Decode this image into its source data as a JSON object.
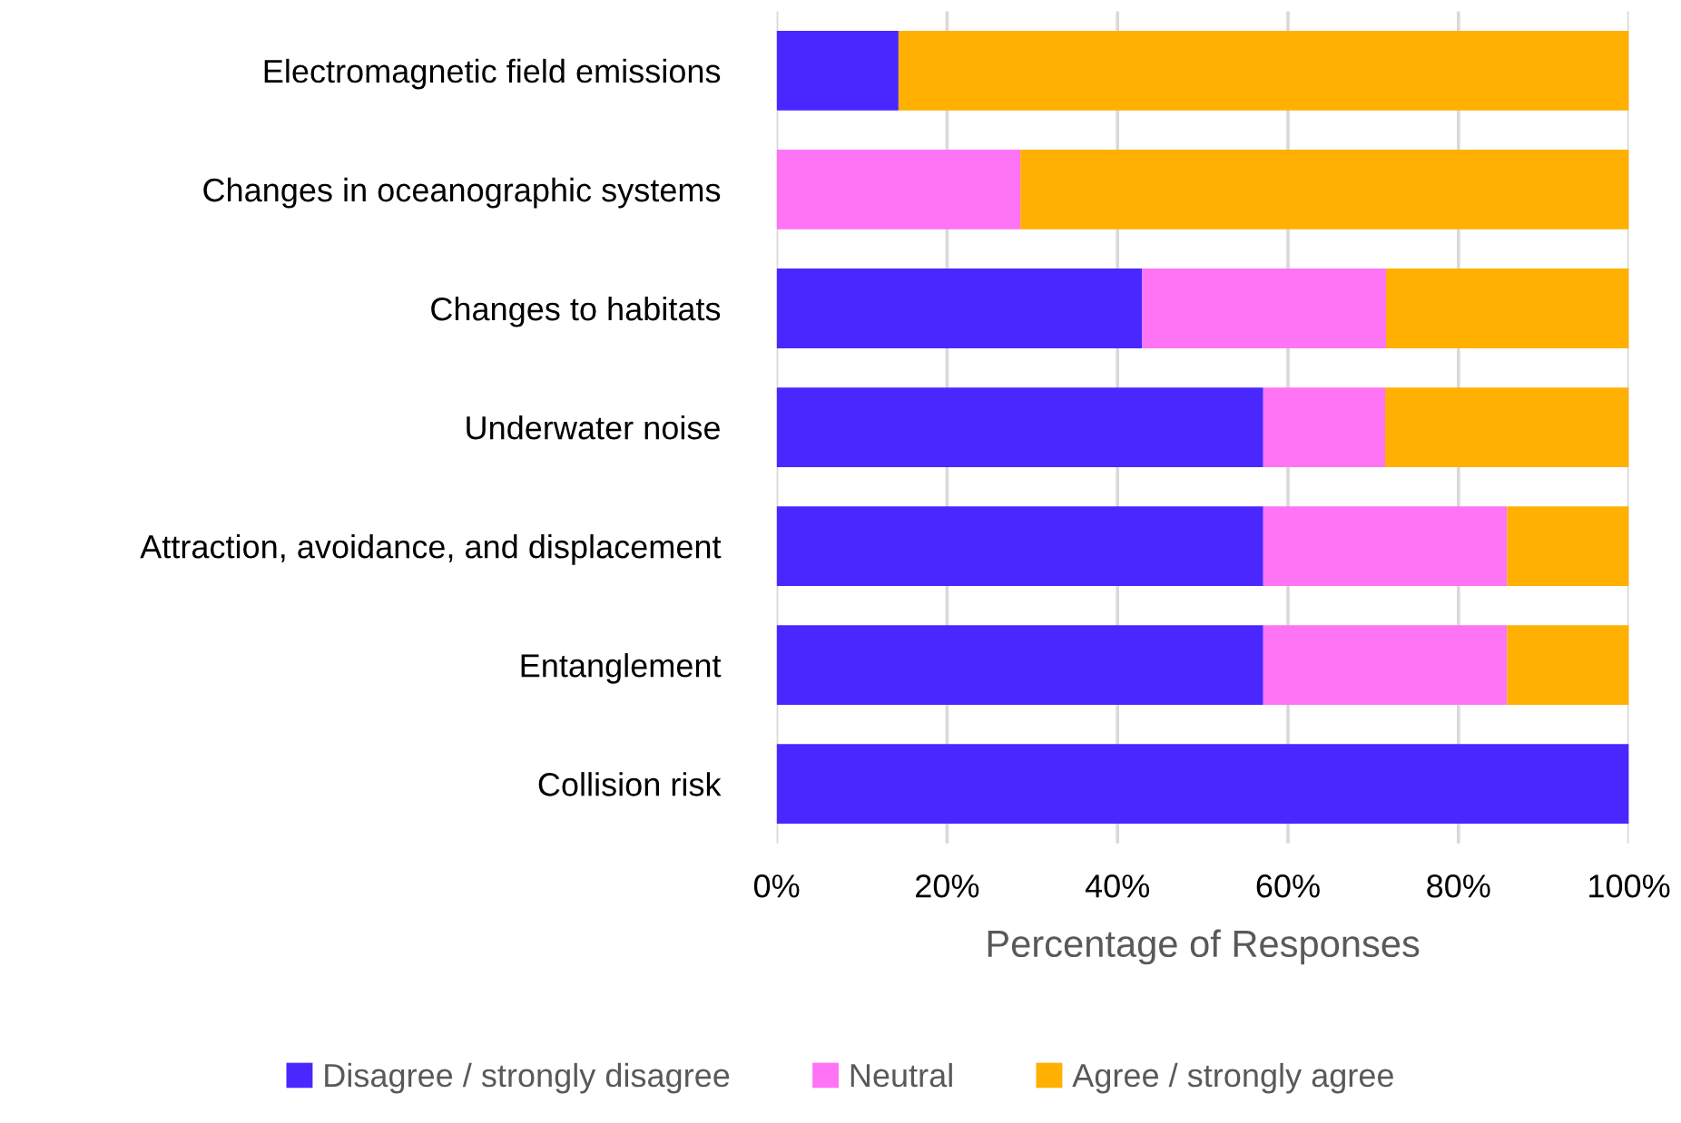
{
  "chart_data": {
    "type": "bar",
    "orientation": "horizontal",
    "stacked": true,
    "xlabel": "Percentage of Responses",
    "categories": [
      "Electromagnetic field emissions",
      "Changes in oceanographic systems",
      "Changes to habitats",
      "Underwater noise",
      "Attraction, avoidance, and displacement",
      "Entanglement",
      "Collision risk"
    ],
    "series": [
      {
        "name": "Disagree / strongly disagree",
        "color": "#4a27ff",
        "values": [
          14.3,
          0,
          42.9,
          57.1,
          57.1,
          57.1,
          100
        ]
      },
      {
        "name": "Neutral",
        "color": "#ff73f5",
        "values": [
          0,
          28.6,
          28.6,
          14.3,
          28.6,
          28.6,
          0
        ]
      },
      {
        "name": "Agree / strongly agree",
        "color": "#ffb000",
        "values": [
          85.7,
          71.4,
          28.5,
          28.6,
          14.3,
          14.3,
          0
        ]
      }
    ],
    "xlim": [
      0,
      100
    ],
    "xticks": [
      {
        "value": 0,
        "label": "0%"
      },
      {
        "value": 20,
        "label": "20%"
      },
      {
        "value": 40,
        "label": "40%"
      },
      {
        "value": 60,
        "label": "60%"
      },
      {
        "value": 80,
        "label": "80%"
      },
      {
        "value": 100,
        "label": "100%"
      }
    ],
    "grid": "x",
    "legend": "bottom"
  }
}
